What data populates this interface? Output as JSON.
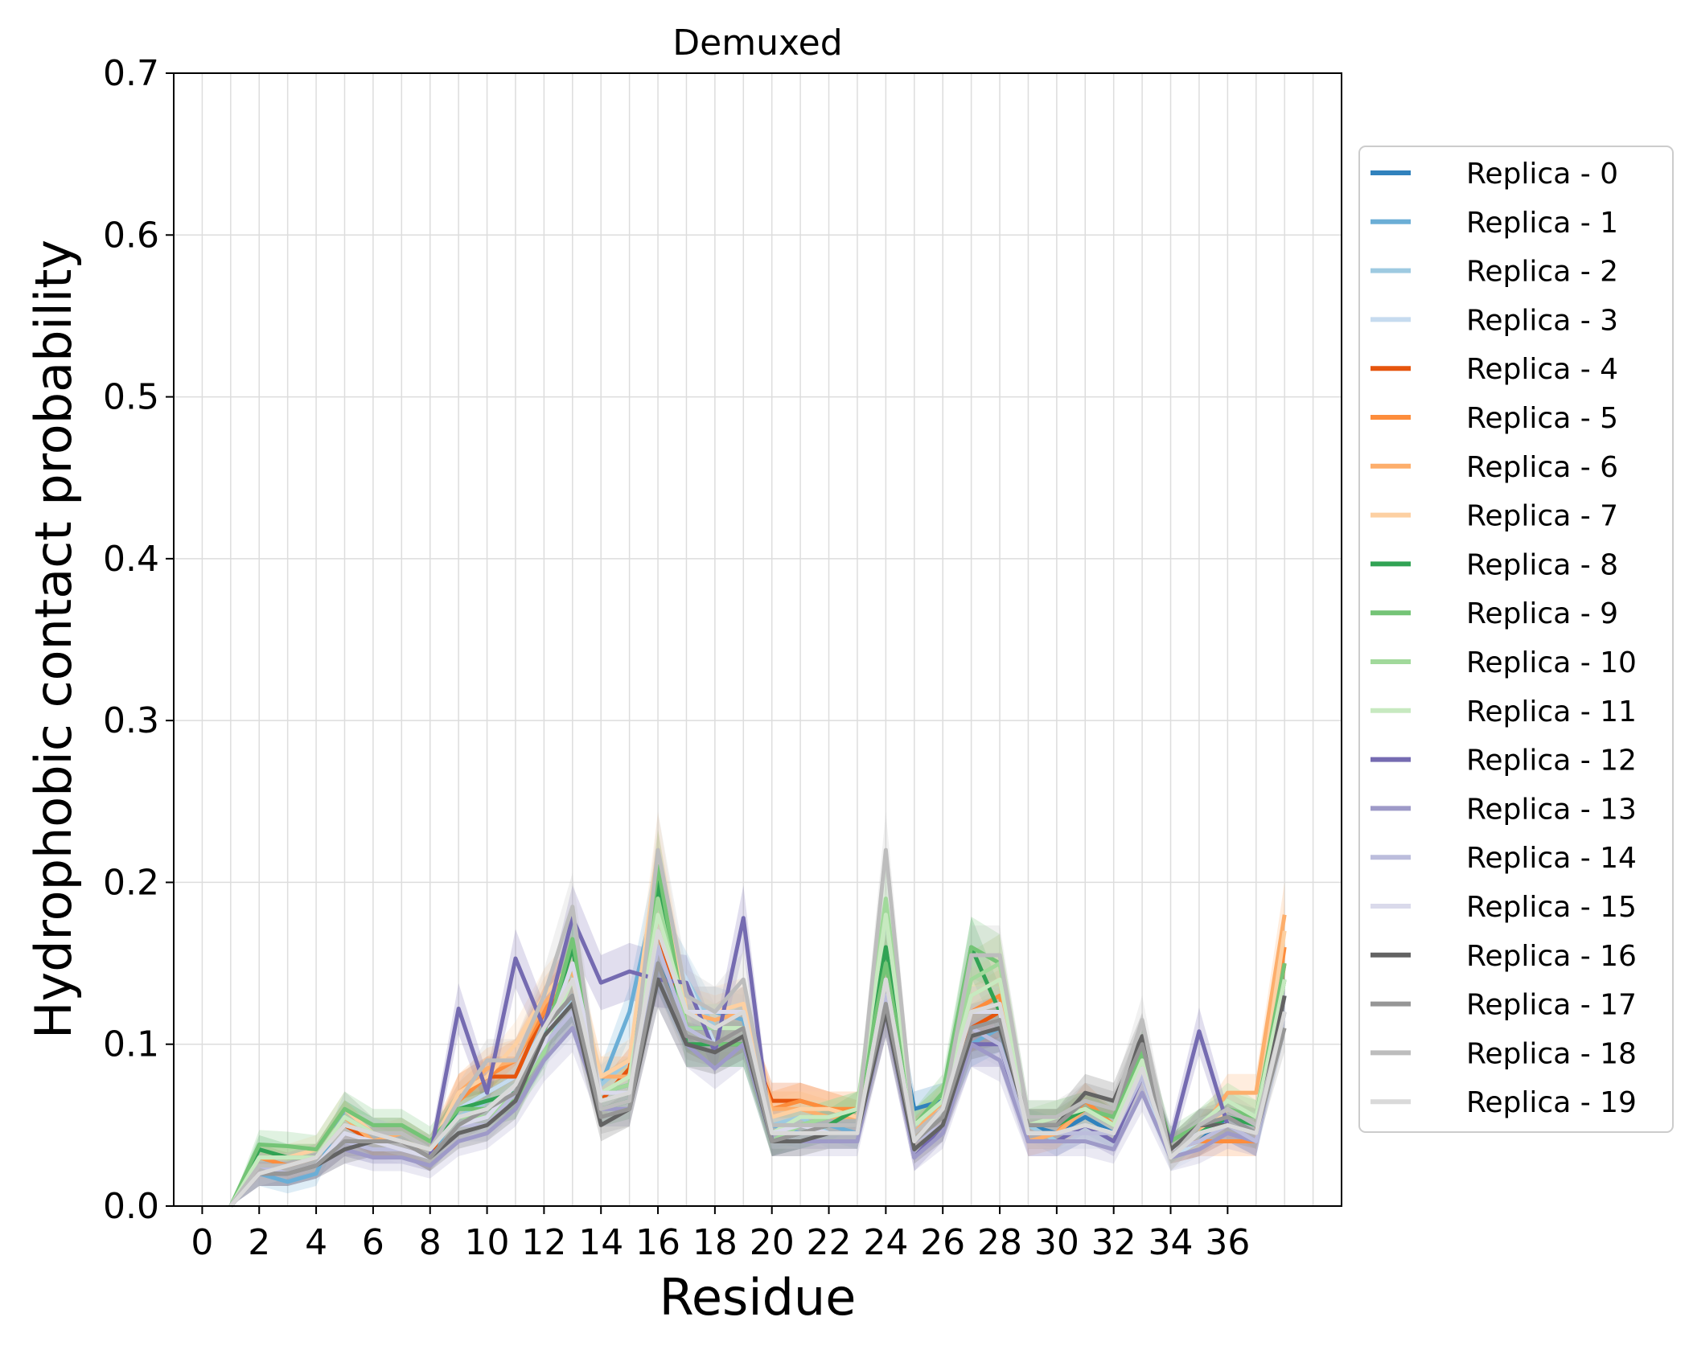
{
  "chart_data": {
    "type": "line",
    "title": "Demuxed",
    "xlabel": "Residue",
    "ylabel": "Hydrophobic contact probability",
    "xlim": [
      -1,
      40
    ],
    "ylim": [
      0,
      0.7
    ],
    "xticks": [
      0,
      2,
      4,
      6,
      8,
      10,
      12,
      14,
      16,
      18,
      20,
      22,
      24,
      26,
      28,
      30,
      32,
      34,
      36
    ],
    "yticks": [
      0.0,
      0.1,
      0.2,
      0.3,
      0.4,
      0.5,
      0.6,
      0.7
    ],
    "ytick_labels": [
      "0.0",
      "0.1",
      "0.2",
      "0.3",
      "0.4",
      "0.5",
      "0.6",
      "0.7"
    ],
    "grid": true,
    "legend_position": "right",
    "x": [
      1,
      2,
      3,
      4,
      5,
      6,
      7,
      8,
      9,
      10,
      11,
      12,
      13,
      14,
      15,
      16,
      17,
      18,
      19,
      20,
      21,
      22,
      23,
      24,
      25,
      26,
      27,
      28,
      29,
      30,
      31,
      32,
      33,
      34,
      35,
      36,
      37,
      38
    ],
    "series": [
      {
        "name": "Replica - 0",
        "color": "#3182bd",
        "values": [
          0.0,
          0.03,
          0.025,
          0.03,
          0.055,
          0.045,
          0.04,
          0.035,
          0.06,
          0.07,
          0.08,
          0.11,
          0.13,
          0.07,
          0.075,
          0.15,
          0.11,
          0.11,
          0.12,
          0.045,
          0.05,
          0.05,
          0.05,
          0.15,
          0.06,
          0.065,
          0.12,
          0.12,
          0.05,
          0.045,
          0.055,
          0.045,
          0.085,
          0.035,
          0.04,
          0.055,
          0.045,
          0.13
        ]
      },
      {
        "name": "Replica - 1",
        "color": "#6baed6",
        "values": [
          0.0,
          0.02,
          0.015,
          0.02,
          0.06,
          0.045,
          0.04,
          0.03,
          0.06,
          0.06,
          0.075,
          0.105,
          0.14,
          0.075,
          0.12,
          0.2,
          0.12,
          0.12,
          0.115,
          0.05,
          0.045,
          0.05,
          0.045,
          0.14,
          0.04,
          0.06,
          0.1,
          0.11,
          0.045,
          0.045,
          0.05,
          0.045,
          0.08,
          0.035,
          0.045,
          0.05,
          0.04,
          0.13
        ]
      },
      {
        "name": "Replica - 2",
        "color": "#9ecae1",
        "values": [
          0.0,
          0.03,
          0.025,
          0.03,
          0.05,
          0.04,
          0.04,
          0.035,
          0.055,
          0.065,
          0.07,
          0.1,
          0.13,
          0.075,
          0.09,
          0.17,
          0.14,
          0.11,
          0.12,
          0.05,
          0.055,
          0.045,
          0.045,
          0.14,
          0.05,
          0.06,
          0.11,
          0.115,
          0.05,
          0.04,
          0.05,
          0.045,
          0.085,
          0.035,
          0.045,
          0.05,
          0.045,
          0.12
        ]
      },
      {
        "name": "Replica - 3",
        "color": "#c6dbef",
        "values": [
          0.0,
          0.025,
          0.025,
          0.03,
          0.055,
          0.045,
          0.04,
          0.035,
          0.06,
          0.07,
          0.08,
          0.11,
          0.125,
          0.07,
          0.08,
          0.17,
          0.14,
          0.1,
          0.11,
          0.045,
          0.05,
          0.05,
          0.05,
          0.14,
          0.05,
          0.06,
          0.11,
          0.115,
          0.045,
          0.045,
          0.05,
          0.045,
          0.08,
          0.03,
          0.04,
          0.05,
          0.04,
          0.12
        ]
      },
      {
        "name": "Replica - 4",
        "color": "#e6550d",
        "values": [
          0.0,
          0.025,
          0.025,
          0.03,
          0.05,
          0.04,
          0.04,
          0.03,
          0.07,
          0.08,
          0.08,
          0.12,
          0.14,
          0.065,
          0.085,
          0.17,
          0.11,
          0.1,
          0.11,
          0.065,
          0.065,
          0.06,
          0.055,
          0.14,
          0.045,
          0.06,
          0.11,
          0.12,
          0.045,
          0.045,
          0.06,
          0.05,
          0.085,
          0.035,
          0.04,
          0.05,
          0.045,
          0.15
        ]
      },
      {
        "name": "Replica - 5",
        "color": "#fd8d3c",
        "values": [
          0.0,
          0.03,
          0.025,
          0.03,
          0.055,
          0.04,
          0.04,
          0.035,
          0.065,
          0.08,
          0.09,
          0.12,
          0.15,
          0.07,
          0.08,
          0.18,
          0.12,
          0.11,
          0.12,
          0.06,
          0.065,
          0.06,
          0.06,
          0.14,
          0.045,
          0.06,
          0.12,
          0.13,
          0.045,
          0.045,
          0.065,
          0.05,
          0.09,
          0.035,
          0.04,
          0.04,
          0.04,
          0.16
        ]
      },
      {
        "name": "Replica - 6",
        "color": "#fdae6b",
        "values": [
          0.0,
          0.03,
          0.03,
          0.03,
          0.055,
          0.04,
          0.045,
          0.035,
          0.07,
          0.085,
          0.09,
          0.125,
          0.145,
          0.08,
          0.08,
          0.21,
          0.12,
          0.115,
          0.12,
          0.06,
          0.06,
          0.055,
          0.055,
          0.15,
          0.045,
          0.065,
          0.13,
          0.14,
          0.04,
          0.045,
          0.06,
          0.05,
          0.09,
          0.035,
          0.045,
          0.07,
          0.07,
          0.18
        ]
      },
      {
        "name": "Replica - 7",
        "color": "#fdd0a2",
        "values": [
          0.0,
          0.03,
          0.03,
          0.035,
          0.06,
          0.045,
          0.045,
          0.035,
          0.07,
          0.08,
          0.1,
          0.13,
          0.15,
          0.08,
          0.09,
          0.22,
          0.12,
          0.12,
          0.125,
          0.055,
          0.06,
          0.06,
          0.055,
          0.15,
          0.05,
          0.065,
          0.14,
          0.15,
          0.05,
          0.05,
          0.06,
          0.05,
          0.09,
          0.035,
          0.045,
          0.06,
          0.05,
          0.17
        ]
      },
      {
        "name": "Replica - 8",
        "color": "#31a354",
        "values": [
          0.0,
          0.035,
          0.03,
          0.03,
          0.055,
          0.045,
          0.045,
          0.035,
          0.06,
          0.065,
          0.07,
          0.1,
          0.16,
          0.06,
          0.065,
          0.2,
          0.1,
          0.1,
          0.1,
          0.04,
          0.045,
          0.05,
          0.06,
          0.16,
          0.05,
          0.065,
          0.16,
          0.12,
          0.05,
          0.05,
          0.06,
          0.05,
          0.09,
          0.035,
          0.045,
          0.055,
          0.05,
          0.14
        ]
      },
      {
        "name": "Replica - 9",
        "color": "#74c476",
        "values": [
          0.0,
          0.038,
          0.037,
          0.035,
          0.06,
          0.05,
          0.05,
          0.04,
          0.06,
          0.06,
          0.065,
          0.1,
          0.165,
          0.065,
          0.07,
          0.21,
          0.11,
          0.1,
          0.1,
          0.045,
          0.05,
          0.055,
          0.06,
          0.15,
          0.05,
          0.07,
          0.16,
          0.15,
          0.055,
          0.055,
          0.06,
          0.055,
          0.095,
          0.04,
          0.05,
          0.06,
          0.055,
          0.15
        ]
      },
      {
        "name": "Replica - 10",
        "color": "#a1d99b",
        "values": [
          0.0,
          0.03,
          0.03,
          0.03,
          0.055,
          0.045,
          0.045,
          0.035,
          0.055,
          0.055,
          0.07,
          0.095,
          0.15,
          0.07,
          0.075,
          0.19,
          0.11,
          0.11,
          0.11,
          0.04,
          0.05,
          0.055,
          0.06,
          0.19,
          0.05,
          0.065,
          0.14,
          0.15,
          0.05,
          0.055,
          0.06,
          0.05,
          0.09,
          0.035,
          0.05,
          0.065,
          0.055,
          0.14
        ]
      },
      {
        "name": "Replica - 11",
        "color": "#c7e9c0",
        "values": [
          0.0,
          0.03,
          0.03,
          0.03,
          0.055,
          0.045,
          0.045,
          0.035,
          0.055,
          0.06,
          0.075,
          0.1,
          0.14,
          0.07,
          0.08,
          0.18,
          0.12,
          0.11,
          0.11,
          0.045,
          0.055,
          0.055,
          0.06,
          0.18,
          0.05,
          0.065,
          0.13,
          0.14,
          0.05,
          0.055,
          0.06,
          0.05,
          0.09,
          0.035,
          0.05,
          0.065,
          0.055,
          0.14
        ]
      },
      {
        "name": "Replica - 12",
        "color": "#756bb1",
        "values": [
          0.0,
          0.02,
          0.02,
          0.025,
          0.04,
          0.035,
          0.035,
          0.03,
          0.122,
          0.07,
          0.153,
          0.11,
          0.178,
          0.138,
          0.145,
          0.14,
          0.138,
          0.095,
          0.178,
          0.04,
          0.045,
          0.045,
          0.045,
          0.12,
          0.03,
          0.05,
          0.1,
          0.1,
          0.04,
          0.04,
          0.05,
          0.04,
          0.08,
          0.04,
          0.108,
          0.05,
          0.04,
          0.13
        ]
      },
      {
        "name": "Replica - 13",
        "color": "#9e9ac8",
        "values": [
          0.0,
          0.02,
          0.02,
          0.025,
          0.035,
          0.03,
          0.03,
          0.025,
          0.04,
          0.045,
          0.06,
          0.09,
          0.11,
          0.06,
          0.06,
          0.14,
          0.1,
          0.085,
          0.1,
          0.04,
          0.04,
          0.04,
          0.04,
          0.12,
          0.03,
          0.045,
          0.1,
          0.09,
          0.04,
          0.04,
          0.04,
          0.035,
          0.07,
          0.03,
          0.035,
          0.045,
          0.04,
          0.12
        ]
      },
      {
        "name": "Replica - 14",
        "color": "#bcbddc",
        "values": [
          0.0,
          0.025,
          0.02,
          0.025,
          0.04,
          0.035,
          0.035,
          0.03,
          0.05,
          0.05,
          0.07,
          0.1,
          0.12,
          0.07,
          0.07,
          0.16,
          0.11,
          0.1,
          0.11,
          0.045,
          0.045,
          0.045,
          0.045,
          0.13,
          0.04,
          0.05,
          0.11,
          0.1,
          0.045,
          0.045,
          0.045,
          0.045,
          0.08,
          0.035,
          0.04,
          0.05,
          0.04,
          0.13
        ]
      },
      {
        "name": "Replica - 15",
        "color": "#dadaeb",
        "values": [
          0.0,
          0.02,
          0.02,
          0.025,
          0.045,
          0.04,
          0.035,
          0.03,
          0.05,
          0.055,
          0.075,
          0.1,
          0.15,
          0.07,
          0.07,
          0.17,
          0.12,
          0.12,
          0.12,
          0.045,
          0.05,
          0.045,
          0.045,
          0.14,
          0.04,
          0.06,
          0.12,
          0.12,
          0.045,
          0.045,
          0.05,
          0.045,
          0.085,
          0.035,
          0.045,
          0.05,
          0.045,
          0.13
        ]
      },
      {
        "name": "Replica - 16",
        "color": "#636363",
        "values": [
          0.0,
          0.02,
          0.02,
          0.025,
          0.035,
          0.04,
          0.04,
          0.03,
          0.045,
          0.05,
          0.065,
          0.105,
          0.125,
          0.05,
          0.06,
          0.14,
          0.1,
          0.095,
          0.105,
          0.04,
          0.04,
          0.045,
          0.045,
          0.12,
          0.035,
          0.05,
          0.105,
          0.11,
          0.05,
          0.05,
          0.07,
          0.065,
          0.105,
          0.035,
          0.05,
          0.05,
          0.045,
          0.13
        ]
      },
      {
        "name": "Replica - 17",
        "color": "#969696",
        "values": [
          0.0,
          0.02,
          0.02,
          0.025,
          0.04,
          0.04,
          0.04,
          0.03,
          0.05,
          0.06,
          0.07,
          0.11,
          0.13,
          0.055,
          0.06,
          0.15,
          0.105,
          0.1,
          0.11,
          0.04,
          0.045,
          0.05,
          0.05,
          0.125,
          0.04,
          0.055,
          0.11,
          0.115,
          0.05,
          0.05,
          0.065,
          0.06,
          0.1,
          0.03,
          0.05,
          0.055,
          0.045,
          0.11
        ]
      },
      {
        "name": "Replica - 18",
        "color": "#bdbdbd",
        "values": [
          0.0,
          0.025,
          0.025,
          0.03,
          0.05,
          0.045,
          0.045,
          0.035,
          0.065,
          0.09,
          0.09,
          0.13,
          0.185,
          0.06,
          0.065,
          0.22,
          0.13,
          0.12,
          0.14,
          0.05,
          0.05,
          0.05,
          0.05,
          0.22,
          0.045,
          0.06,
          0.155,
          0.155,
          0.055,
          0.055,
          0.065,
          0.06,
          0.115,
          0.03,
          0.05,
          0.06,
          0.05,
          0.12
        ]
      },
      {
        "name": "Replica - 19",
        "color": "#d9d9d9",
        "values": [
          0.0,
          0.02,
          0.025,
          0.03,
          0.05,
          0.045,
          0.04,
          0.035,
          0.055,
          0.06,
          0.075,
          0.11,
          0.14,
          0.065,
          0.07,
          0.17,
          0.12,
          0.11,
          0.12,
          0.045,
          0.045,
          0.045,
          0.045,
          0.14,
          0.04,
          0.06,
          0.12,
          0.125,
          0.045,
          0.045,
          0.05,
          0.045,
          0.085,
          0.03,
          0.045,
          0.05,
          0.045,
          0.12
        ]
      }
    ]
  }
}
